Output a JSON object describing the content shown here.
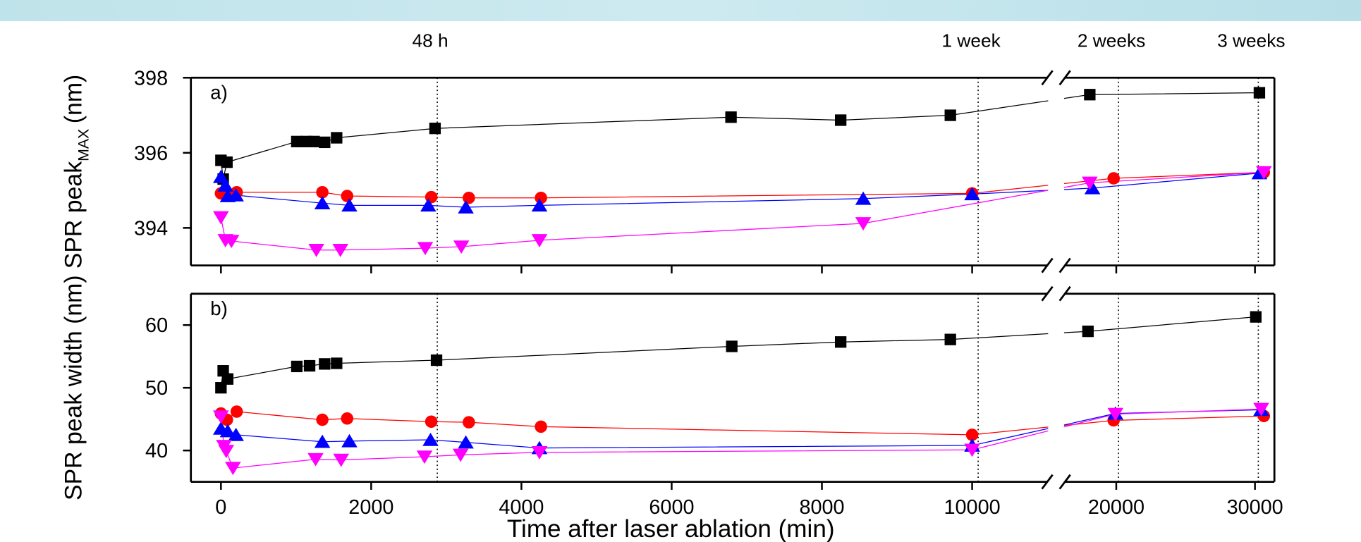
{
  "chart_data": [
    {
      "type": "line",
      "panel_label": "a)",
      "ylabel": "SPR peak",
      "ylabel_sub": "MAX",
      "ylabel_unit": "(nm)",
      "xlim": [
        -400,
        31400
      ],
      "x_break": [
        11000,
        16300
      ],
      "ylim": [
        393,
        398
      ],
      "yticks": [
        394,
        396,
        398
      ],
      "annotations": [
        {
          "text": "48 h",
          "x": 2880
        },
        {
          "text": "1 week",
          "x": 10080
        },
        {
          "text": "2 weeks",
          "x": 20160
        },
        {
          "text": "3 weeks",
          "x": 30240
        }
      ],
      "series": [
        {
          "color": "#000000",
          "marker": "square",
          "x": [
            0,
            30,
            80,
            1010,
            1140,
            1240,
            1380,
            1540,
            2850,
            6790,
            8250,
            9710,
            18090,
            30320
          ],
          "values": [
            395.8,
            395.3,
            395.75,
            396.3,
            396.3,
            396.3,
            396.28,
            396.4,
            396.65,
            396.95,
            396.87,
            397.0,
            397.55,
            397.6
          ]
        },
        {
          "color": "#ff0000",
          "marker": "circle",
          "x": [
            0,
            90,
            210,
            1350,
            1680,
            2800,
            3300,
            4260,
            10000,
            19810,
            30640
          ],
          "values": [
            394.92,
            394.92,
            394.95,
            394.95,
            394.85,
            394.82,
            394.8,
            394.8,
            394.92,
            395.32,
            395.48
          ]
        },
        {
          "color": "#0000ff",
          "marker": "triangle-up",
          "x": [
            0,
            60,
            90,
            200,
            1350,
            1710,
            2760,
            3260,
            4240,
            8550,
            10000,
            18280,
            30320
          ],
          "values": [
            395.36,
            395.13,
            394.85,
            394.87,
            394.66,
            394.6,
            394.6,
            394.55,
            394.6,
            394.78,
            394.9,
            395.06,
            395.46
          ]
        },
        {
          "color": "#ff00ff",
          "marker": "triangle-down",
          "x": [
            0,
            60,
            140,
            1270,
            1590,
            2720,
            3200,
            4240,
            8550,
            18090,
            30640
          ],
          "values": [
            394.28,
            393.67,
            393.65,
            393.41,
            393.41,
            393.46,
            393.5,
            393.67,
            394.12,
            395.2,
            395.48
          ]
        }
      ]
    },
    {
      "type": "line",
      "panel_label": "b)",
      "ylabel": "SPR peak width (nm)",
      "xlabel": "Time after laser ablation (min)",
      "xlim": [
        -400,
        31400
      ],
      "x_break": [
        11000,
        16300
      ],
      "xticks": [
        0,
        2000,
        4000,
        6000,
        8000,
        10000,
        20000,
        30000
      ],
      "ylim": [
        35,
        65
      ],
      "yticks": [
        40,
        50,
        60
      ],
      "series": [
        {
          "color": "#000000",
          "marker": "square",
          "x": [
            0,
            30,
            90,
            1010,
            1180,
            1380,
            1540,
            2870,
            6800,
            8250,
            9710,
            17960,
            30060
          ],
          "values": [
            50,
            52.7,
            51.4,
            53.4,
            53.5,
            53.8,
            53.9,
            54.4,
            56.6,
            57.3,
            57.7,
            59.0,
            61.3
          ]
        },
        {
          "color": "#ff0000",
          "marker": "circle",
          "x": [
            0,
            80,
            210,
            1350,
            1680,
            2800,
            3300,
            4260,
            10000,
            19810,
            30640
          ],
          "values": [
            45.9,
            44.9,
            46.2,
            44.9,
            45.1,
            44.6,
            44.5,
            43.8,
            42.5,
            44.8,
            45.5
          ]
        },
        {
          "color": "#0000ff",
          "marker": "triangle-up",
          "x": [
            0,
            90,
            200,
            1350,
            1710,
            2790,
            3260,
            4240,
            10000,
            19940,
            30450
          ],
          "values": [
            43.5,
            43.1,
            42.5,
            41.4,
            41.5,
            41.7,
            41.3,
            40.4,
            40.8,
            45.9,
            46.5
          ]
        },
        {
          "color": "#ff00ff",
          "marker": "triangle-down",
          "x": [
            0,
            40,
            70,
            160,
            1260,
            1600,
            2710,
            3190,
            4240,
            10000,
            19940,
            30450
          ],
          "values": [
            45.4,
            40.7,
            39.9,
            37.2,
            38.6,
            38.5,
            39.0,
            39.3,
            39.7,
            40.1,
            45.8,
            46.6
          ]
        }
      ]
    }
  ]
}
